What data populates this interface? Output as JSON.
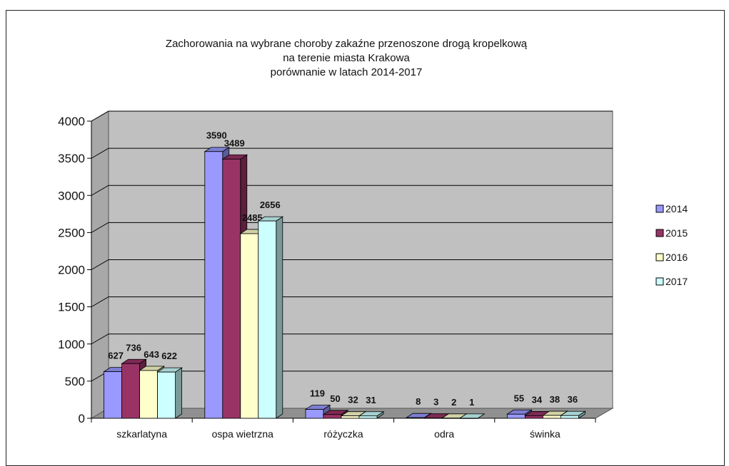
{
  "chart_data": {
    "type": "bar",
    "title_lines": [
      "Zachorowania na wybrane choroby zakaźne przenoszone drogą kropelkową",
      "na terenie miasta Krakowa",
      "porównanie w latach 2014-2017"
    ],
    "categories": [
      "szkarlatyna",
      "ospa wietrzna",
      "różyczka",
      "odra",
      "świnka"
    ],
    "series": [
      {
        "name": "2014",
        "values": [
          627,
          3590,
          119,
          8,
          55
        ],
        "color": "#9999ff"
      },
      {
        "name": "2015",
        "values": [
          736,
          3489,
          50,
          3,
          34
        ],
        "color": "#993366"
      },
      {
        "name": "2016",
        "values": [
          643,
          2485,
          32,
          2,
          38
        ],
        "color": "#ffffcc"
      },
      {
        "name": "2017",
        "values": [
          622,
          2656,
          31,
          1,
          36
        ],
        "color": "#ccffff"
      }
    ],
    "ylim": [
      0,
      4000
    ],
    "yticks": [
      0,
      500,
      1000,
      1500,
      2000,
      2500,
      3000,
      3500,
      4000
    ],
    "grid": true,
    "legend_position": "right",
    "wall_color": "#c0c0c0"
  }
}
